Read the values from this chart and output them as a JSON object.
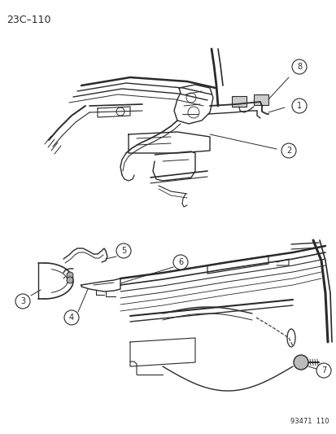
{
  "page_id": "23C–110",
  "drawing_id": "93471  110",
  "background": "#ffffff",
  "ink": "#2a2a2a",
  "figsize": [
    4.14,
    5.33
  ],
  "dpi": 100
}
